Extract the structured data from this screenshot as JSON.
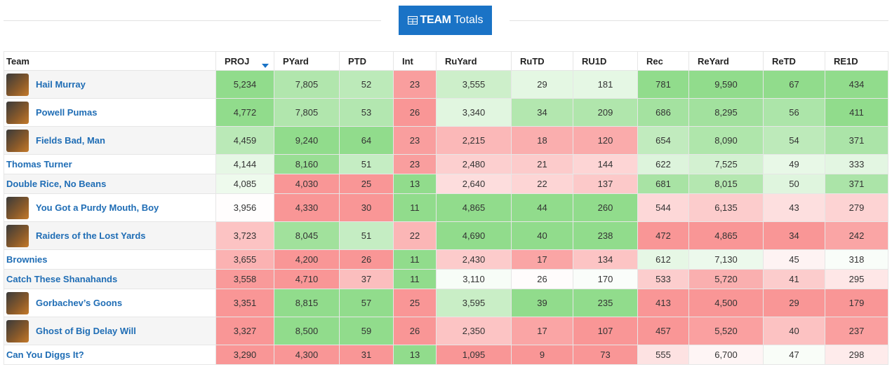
{
  "header": {
    "bold": "TEAM",
    "rest": "Totals"
  },
  "table": {
    "columns": [
      "Team",
      "PROJ",
      "PYard",
      "PTD",
      "Int",
      "RuYard",
      "RuTD",
      "RU1D",
      "Rec",
      "ReYard",
      "ReTD",
      "RE1D"
    ],
    "sorted_column": 1,
    "lower_is_better_columns": [
      4
    ],
    "rows": [
      {
        "team": "Hail Murray",
        "logo": true,
        "cells": [
          "5,234",
          "7,805",
          "52",
          "23",
          "3,555",
          "29",
          "181",
          "781",
          "9,590",
          "67",
          "434"
        ]
      },
      {
        "team": "Powell Pumas",
        "logo": true,
        "cells": [
          "4,772",
          "7,805",
          "53",
          "26",
          "3,340",
          "34",
          "209",
          "686",
          "8,295",
          "56",
          "411"
        ]
      },
      {
        "team": "Fields Bad, Man",
        "logo": true,
        "cells": [
          "4,459",
          "9,240",
          "64",
          "23",
          "2,215",
          "18",
          "120",
          "654",
          "8,090",
          "54",
          "371"
        ]
      },
      {
        "team": "Thomas Turner",
        "logo": false,
        "cells": [
          "4,144",
          "8,160",
          "51",
          "23",
          "2,480",
          "21",
          "144",
          "622",
          "7,525",
          "49",
          "333"
        ]
      },
      {
        "team": "Double Rice, No Beans",
        "logo": false,
        "cells": [
          "4,085",
          "4,030",
          "25",
          "13",
          "2,640",
          "22",
          "137",
          "681",
          "8,015",
          "50",
          "371"
        ]
      },
      {
        "team": "You Got a Purdy Mouth, Boy",
        "logo": true,
        "cells": [
          "3,956",
          "4,330",
          "30",
          "11",
          "4,865",
          "44",
          "260",
          "544",
          "6,135",
          "43",
          "279"
        ]
      },
      {
        "team": "Raiders of the Lost Yards",
        "logo": true,
        "cells": [
          "3,723",
          "8,045",
          "51",
          "22",
          "4,690",
          "40",
          "238",
          "472",
          "4,865",
          "34",
          "242"
        ]
      },
      {
        "team": "Brownies",
        "logo": false,
        "cells": [
          "3,655",
          "4,200",
          "26",
          "11",
          "2,430",
          "17",
          "134",
          "612",
          "7,130",
          "45",
          "318"
        ]
      },
      {
        "team": "Catch These Shanahands",
        "logo": false,
        "cells": [
          "3,558",
          "4,710",
          "37",
          "11",
          "3,110",
          "26",
          "170",
          "533",
          "5,720",
          "41",
          "295"
        ]
      },
      {
        "team": "Gorbachev’s Goons",
        "logo": true,
        "cells": [
          "3,351",
          "8,815",
          "57",
          "25",
          "3,595",
          "39",
          "235",
          "413",
          "4,500",
          "29",
          "179"
        ]
      },
      {
        "team": "Ghost of Big Delay Will",
        "logo": true,
        "cells": [
          "3,327",
          "8,500",
          "59",
          "26",
          "2,350",
          "17",
          "107",
          "457",
          "5,520",
          "40",
          "237"
        ]
      },
      {
        "team": "Can You Diggs It?",
        "logo": false,
        "cells": [
          "3,290",
          "4,300",
          "31",
          "13",
          "1,095",
          "9",
          "73",
          "555",
          "6,700",
          "47",
          "298"
        ]
      }
    ]
  }
}
